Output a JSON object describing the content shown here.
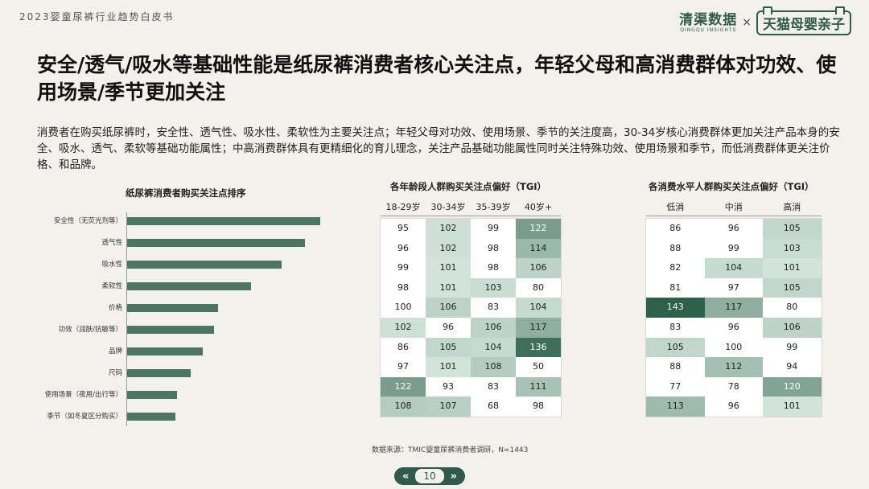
{
  "header": {
    "report_title": "2023婴童尿裤行业趋势白皮书",
    "brand_left_main": "清渠数据",
    "brand_left_sub": "QINGQU INSIGHTS",
    "brand_sep": "×",
    "brand_right": "天猫母婴亲子"
  },
  "main_title": "安全/透气/吸水等基础性能是纸尿裤消费者核心关注点，年轻父母和高消费群体对功效、使用场景/季节更加关注",
  "intro": "消费者在购买纸尿裤时，安全性、透气性、吸水性、柔软性为主要关注点；年轻父母对功效、使用场景、季节的关注度高，30-34岁核心消费群体更加关注产品本身的安全、吸水、透气、柔软等基础功能属性；中高消费群体具有更精细化的育儿理念，关注产品基础功能属性同时关注特殊功效、使用场景和季节，而低消费群体更关注价格、和品牌。",
  "colors": {
    "brand": "#2f5a4c",
    "bar": "#4d7566",
    "background": "#f3f1ec"
  },
  "chart_data": [
    {
      "type": "bar",
      "title": "纸尿裤消费者购买关注点排序",
      "categories": [
        "安全性（无荧光剂等）",
        "透气性",
        "吸水性",
        "柔软性",
        "价格",
        "功效（润肤/抗敏等）",
        "品牌",
        "尺码",
        "使用场景（夜用/出行等）",
        "季节（如冬夏区分购买）"
      ],
      "values": [
        100,
        92,
        80,
        64,
        47,
        45,
        39,
        33,
        26,
        25
      ],
      "orientation": "horizontal",
      "xlabel": "",
      "ylabel": ""
    },
    {
      "type": "heatmap",
      "title": "各年龄段人群购买关注点偏好（TGI）",
      "columns": [
        "18-29岁",
        "30-34岁",
        "35-39岁",
        "40岁+"
      ],
      "rows": [
        [
          95,
          102,
          99,
          122
        ],
        [
          96,
          102,
          98,
          114
        ],
        [
          99,
          101,
          98,
          106
        ],
        [
          98,
          101,
          103,
          80
        ],
        [
          100,
          106,
          83,
          104
        ],
        [
          102,
          96,
          106,
          117
        ],
        [
          86,
          105,
          104,
          136
        ],
        [
          97,
          101,
          108,
          50
        ],
        [
          122,
          93,
          83,
          111
        ],
        [
          108,
          107,
          68,
          98
        ]
      ]
    },
    {
      "type": "heatmap",
      "title": "各消费水平人群购买关注点偏好（TGI）",
      "columns": [
        "低消",
        "中消",
        "高消"
      ],
      "rows": [
        [
          86,
          96,
          105
        ],
        [
          88,
          99,
          103
        ],
        [
          82,
          104,
          101
        ],
        [
          81,
          97,
          105
        ],
        [
          143,
          117,
          80
        ],
        [
          83,
          96,
          106
        ],
        [
          105,
          100,
          99
        ],
        [
          88,
          112,
          94
        ],
        [
          77,
          78,
          120
        ],
        [
          113,
          96,
          101
        ]
      ]
    }
  ],
  "footer": {
    "source": "数据来源：TMIC婴童尿裤消费者调研，N=1443",
    "page_number": "10",
    "prev_icon": "double-chevron-left-icon",
    "next_icon": "double-chevron-right-icon"
  }
}
